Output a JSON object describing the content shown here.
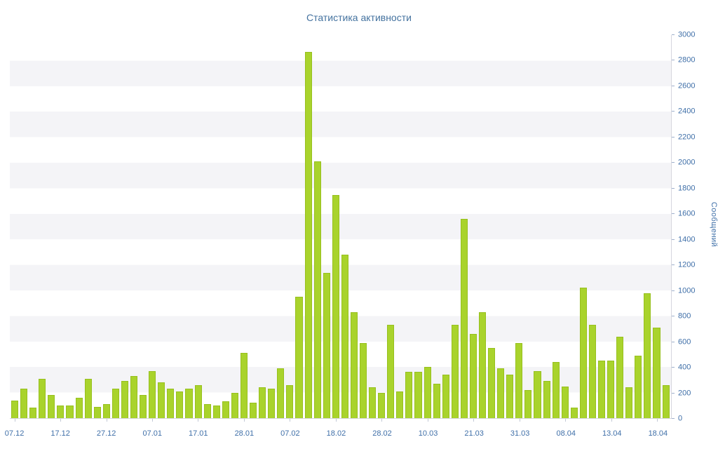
{
  "title": "Статистика активности",
  "chart_data": {
    "type": "bar",
    "title": "Статистика активности",
    "ylabel": "Сообщений",
    "ylim": [
      0,
      3000
    ],
    "yticks": [
      0,
      200,
      400,
      600,
      800,
      1000,
      1200,
      1400,
      1600,
      1800,
      2000,
      2200,
      2400,
      2600,
      2800,
      3000
    ],
    "x_labels": [
      "07.12",
      "17.12",
      "27.12",
      "07.01",
      "17.01",
      "28.01",
      "07.02",
      "18.02",
      "28.02",
      "10.03",
      "21.03",
      "31.03",
      "08.04",
      "13.04",
      "18.04"
    ],
    "x_label_every": 5,
    "values": [
      140,
      230,
      80,
      310,
      180,
      100,
      100,
      160,
      310,
      90,
      110,
      230,
      290,
      330,
      180,
      370,
      280,
      230,
      210,
      230,
      260,
      110,
      100,
      130,
      200,
      510,
      120,
      240,
      230,
      390,
      260,
      950,
      2870,
      2010,
      1140,
      1750,
      1280,
      830,
      590,
      240,
      200,
      730,
      210,
      360,
      360,
      400,
      270,
      340,
      730,
      1560,
      660,
      830,
      550,
      390,
      340,
      590,
      220,
      370,
      290,
      440,
      250,
      80,
      1020,
      730,
      450,
      450,
      640,
      240,
      490,
      980,
      710,
      260
    ],
    "bar_color": "#a9d32c",
    "bar_border_color": "#97c01e",
    "axis_text_color": "#3f6fa8",
    "title_color": "#44729f",
    "stripe_color": "#f4f4f7",
    "axis_line_color": "#d6d6de",
    "grid": "banded-horizontal",
    "legend": "none"
  }
}
